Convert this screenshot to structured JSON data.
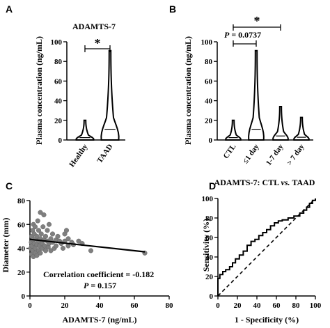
{
  "panel_letters": [
    "A",
    "B",
    "C",
    "D"
  ],
  "chart_data": [
    {
      "type": "violin",
      "panel": "A",
      "title": "ADAMTS-7",
      "ylabel": "Plasma concentration (ng/mL)",
      "xlabel": "",
      "ylim": [
        0,
        100
      ],
      "yticks": [
        0,
        20,
        40,
        60,
        80,
        100
      ],
      "categories": [
        "Healthy",
        "TAAD"
      ],
      "ranges": [
        [
          0,
          20
        ],
        [
          0,
          91
        ]
      ],
      "significance": [
        {
          "from": 0,
          "to": 1,
          "label": "*"
        }
      ]
    },
    {
      "type": "violin",
      "panel": "B",
      "title": "",
      "ylabel": "Plasma concentration (ng/mL)",
      "xlabel": "",
      "ylim": [
        0,
        100
      ],
      "yticks": [
        0,
        20,
        40,
        60,
        80,
        100
      ],
      "categories": [
        "CTL",
        "≤1 day",
        "1-7 day",
        "> 7 day"
      ],
      "ranges": [
        [
          0,
          20
        ],
        [
          0,
          91
        ],
        [
          0,
          34
        ],
        [
          0,
          23
        ]
      ],
      "significance": [
        {
          "from": 0,
          "to": 1,
          "label": "P = 0.0737"
        },
        {
          "from": 0,
          "to": 2,
          "label": "*"
        }
      ]
    },
    {
      "type": "scatter",
      "panel": "C",
      "title": "",
      "xlabel": "ADAMTS-7 (ng/mL)",
      "ylabel": "Diameter (mm)",
      "xlim": [
        0,
        80
      ],
      "ylim": [
        0,
        80
      ],
      "xticks": [
        0,
        20,
        40,
        60,
        80
      ],
      "yticks": [
        0,
        20,
        40,
        60,
        80
      ],
      "points": [
        [
          0.5,
          40
        ],
        [
          0.8,
          45
        ],
        [
          1,
          50
        ],
        [
          1,
          35
        ],
        [
          1.2,
          42
        ],
        [
          1.5,
          55
        ],
        [
          1.5,
          38
        ],
        [
          2,
          47
        ],
        [
          2,
          60
        ],
        [
          2,
          33
        ],
        [
          2.5,
          44
        ],
        [
          2.5,
          52
        ],
        [
          3,
          40
        ],
        [
          3,
          36
        ],
        [
          3,
          58
        ],
        [
          3.5,
          48
        ],
        [
          4,
          43
        ],
        [
          4,
          50
        ],
        [
          4,
          34
        ],
        [
          4.5,
          63
        ],
        [
          5,
          46
        ],
        [
          5,
          38
        ],
        [
          5,
          55
        ],
        [
          5.5,
          42
        ],
        [
          6,
          70
        ],
        [
          6,
          48
        ],
        [
          6,
          36
        ],
        [
          6.5,
          52
        ],
        [
          7,
          44
        ],
        [
          7,
          40
        ],
        [
          7.5,
          58
        ],
        [
          8,
          47
        ],
        [
          8,
          68
        ],
        [
          8.5,
          42
        ],
        [
          9,
          50
        ],
        [
          9,
          38
        ],
        [
          10,
          46
        ],
        [
          10,
          55
        ],
        [
          10.5,
          41
        ],
        [
          11,
          60
        ],
        [
          11,
          44
        ],
        [
          12,
          48
        ],
        [
          12,
          38
        ],
        [
          13,
          52
        ],
        [
          13,
          45
        ],
        [
          14,
          40
        ],
        [
          15,
          47
        ],
        [
          15,
          42
        ],
        [
          16,
          50
        ],
        [
          17,
          46
        ],
        [
          18,
          44
        ],
        [
          19,
          40
        ],
        [
          20,
          52
        ],
        [
          20,
          46
        ],
        [
          21,
          55
        ],
        [
          22,
          42
        ],
        [
          22,
          48
        ],
        [
          24,
          45
        ],
        [
          25,
          43
        ],
        [
          28,
          46
        ],
        [
          30,
          44
        ],
        [
          35,
          38
        ],
        [
          66,
          36
        ]
      ],
      "fit_line": [
        [
          0,
          47.5
        ],
        [
          66,
          37
        ]
      ],
      "annotation": [
        "Correlation coefficient = -0.182",
        "P = 0.157"
      ]
    },
    {
      "type": "line",
      "panel": "D",
      "title": "ADAMTS-7: CTL vs. TAAD",
      "xlabel": "1 - Specificity (%)",
      "ylabel": "Sensitivity (%)",
      "xlim": [
        0,
        100
      ],
      "ylim": [
        0,
        100
      ],
      "xticks": [
        0,
        20,
        40,
        60,
        80,
        100
      ],
      "yticks": [
        0,
        20,
        40,
        60,
        80,
        100
      ],
      "series": [
        {
          "values": [
            [
              0,
              0
            ],
            [
              0,
              18
            ],
            [
              2,
              18
            ],
            [
              2,
              22
            ],
            [
              5,
              22
            ],
            [
              5,
              25
            ],
            [
              8,
              25
            ],
            [
              8,
              27
            ],
            [
              12,
              27
            ],
            [
              12,
              30
            ],
            [
              15,
              30
            ],
            [
              15,
              34
            ],
            [
              18,
              34
            ],
            [
              18,
              38
            ],
            [
              22,
              38
            ],
            [
              22,
              42
            ],
            [
              26,
              42
            ],
            [
              26,
              46
            ],
            [
              30,
              46
            ],
            [
              30,
              52
            ],
            [
              34,
              52
            ],
            [
              34,
              56
            ],
            [
              38,
              56
            ],
            [
              38,
              58
            ],
            [
              42,
              58
            ],
            [
              42,
              62
            ],
            [
              46,
              62
            ],
            [
              46,
              65
            ],
            [
              50,
              65
            ],
            [
              50,
              68
            ],
            [
              54,
              68
            ],
            [
              54,
              72
            ],
            [
              58,
              72
            ],
            [
              58,
              75
            ],
            [
              62,
              75
            ],
            [
              62,
              77
            ],
            [
              66,
              77
            ],
            [
              66,
              78
            ],
            [
              72,
              78
            ],
            [
              72,
              80
            ],
            [
              78,
              80
            ],
            [
              78,
              82
            ],
            [
              84,
              82
            ],
            [
              84,
              85
            ],
            [
              88,
              85
            ],
            [
              88,
              88
            ],
            [
              91,
              88
            ],
            [
              91,
              91
            ],
            [
              94,
              91
            ],
            [
              94,
              95
            ],
            [
              97,
              95
            ],
            [
              97,
              98
            ],
            [
              100,
              98
            ],
            [
              100,
              100
            ]
          ]
        },
        {
          "values": [
            [
              0,
              0
            ],
            [
              100,
              100
            ]
          ],
          "style": "dashed"
        }
      ]
    }
  ]
}
